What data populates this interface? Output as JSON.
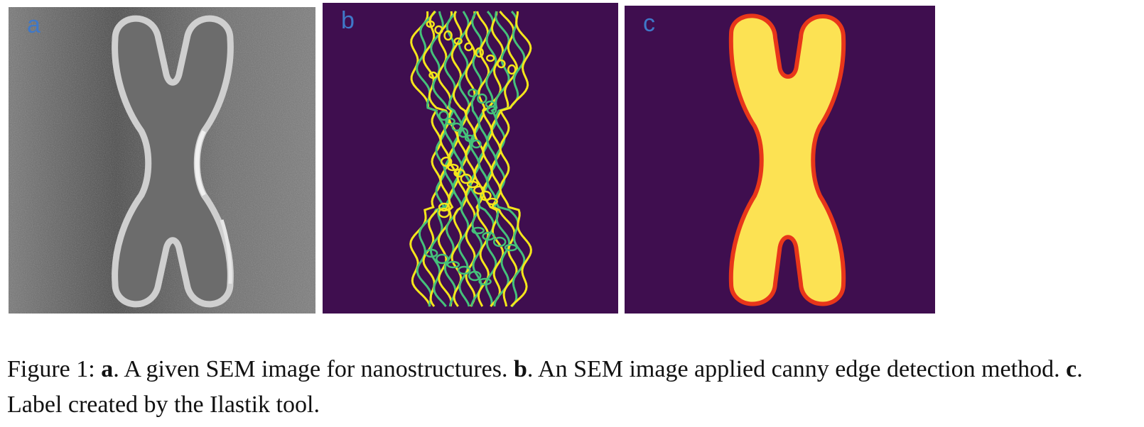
{
  "figure": {
    "panels": [
      {
        "letter": "a",
        "letter_color": "#3f78c8"
      },
      {
        "letter": "b",
        "letter_color": "#3f78c8",
        "background": "#3f0e4f",
        "edge_colors": [
          "#f5e51b",
          "#45c17a"
        ]
      },
      {
        "letter": "c",
        "letter_color": "#3f78c8",
        "background": "#3f0e4f",
        "fill": "#fce253",
        "outline": "#e8361a"
      }
    ],
    "caption": {
      "prefix": "Figure 1: ",
      "a_label": "a",
      "a_text": ". A given SEM image for nanostructures. ",
      "b_label": "b",
      "b_text": ". An SEM image applied canny edge detection method. ",
      "c_label": "c",
      "c_text": ". Label created by the Ilastik tool."
    }
  }
}
